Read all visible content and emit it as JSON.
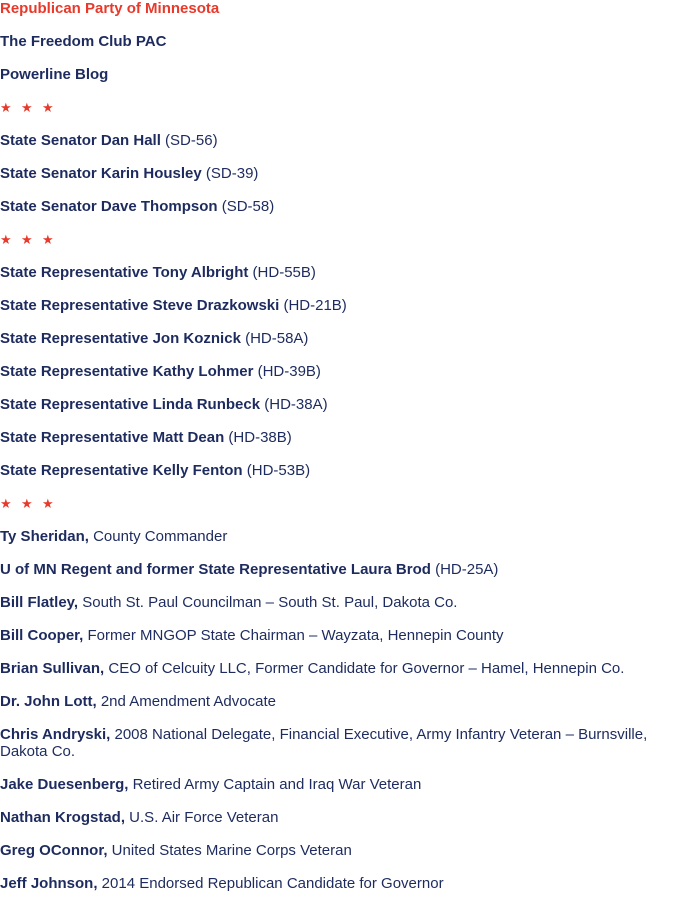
{
  "colors": {
    "accent_red": "#e8392b",
    "text_navy": "#1d2b5e"
  },
  "separator_icon": "star-icon",
  "separator_glyph": "★",
  "groups": [
    {
      "items": [
        {
          "name": "Republican Party of Minnesota",
          "detail": "",
          "highlight": true
        },
        {
          "name": "The Freedom Club PAC",
          "detail": ""
        },
        {
          "name": "Powerline Blog",
          "detail": ""
        }
      ]
    },
    {
      "items": [
        {
          "name": "State Senator Dan Hall",
          "detail": " (SD-56)"
        },
        {
          "name": "State Senator Karin Housley",
          "detail": " (SD-39)"
        },
        {
          "name": "State Senator Dave Thompson",
          "detail": " (SD-58)"
        }
      ]
    },
    {
      "items": [
        {
          "name": "State Representative Tony Albright",
          "detail": " (HD-55B)"
        },
        {
          "name": "State Representative Steve Drazkowski",
          "detail": " (HD-21B)"
        },
        {
          "name": "State Representative Jon Koznick",
          "detail": " (HD-58A)"
        },
        {
          "name": "State Representative Kathy Lohmer",
          "detail": " (HD-39B)"
        },
        {
          "name": "State Representative Linda Runbeck",
          "detail": " (HD-38A)"
        },
        {
          "name": "State Representative Matt Dean",
          "detail": " (HD-38B)"
        },
        {
          "name": "State Representative Kelly Fenton",
          "detail": " (HD-53B)"
        }
      ]
    },
    {
      "items": [
        {
          "name": "Ty Sheridan,",
          "detail": " County Commander"
        },
        {
          "name": "U of MN Regent and former State Representative Laura Brod",
          "detail": " (HD-25A)"
        },
        {
          "name": "Bill Flatley,",
          "detail": " South St. Paul Councilman – South St. Paul, Dakota Co."
        },
        {
          "name": "Bill Cooper,",
          "detail": " Former MNGOP State Chairman – Wayzata, Hennepin County"
        },
        {
          "name": "Brian Sullivan,",
          "detail": " CEO of Celcuity LLC, Former Candidate for Governor – Hamel, Hennepin Co."
        },
        {
          "name": "Dr. John Lott,",
          "detail": " 2nd Amendment Advocate"
        },
        {
          "name": "Chris Andryski,",
          "detail": " 2008 National Delegate, Financial Executive, Army Infantry Veteran – Burnsville, Dakota Co."
        },
        {
          "name": "Jake Duesenberg,",
          "detail": " Retired Army Captain and Iraq War Veteran"
        },
        {
          "name": "Nathan Krogstad,",
          "detail": " U.S. Air Force Veteran"
        },
        {
          "name": "Greg OConnor,",
          "detail": " United States Marine Corps Veteran"
        },
        {
          "name": "Jeff Johnson,",
          "detail": " 2014 Endorsed Republican Candidate for Governor"
        }
      ]
    }
  ]
}
